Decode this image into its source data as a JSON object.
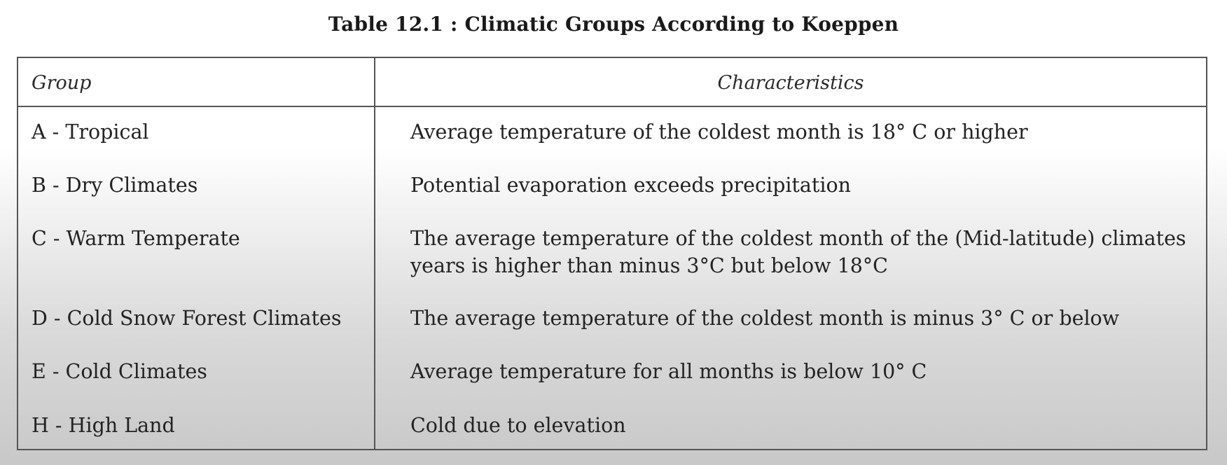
{
  "caption": "Table 12.1 : Climatic Groups According to Koeppen",
  "headers": {
    "group": "Group",
    "characteristics": "Characteristics"
  },
  "rows": [
    {
      "group": "A - Tropical",
      "characteristics": [
        "Average temperature of the coldest month is 18° C or higher"
      ]
    },
    {
      "group": "B - Dry Climates",
      "characteristics": [
        "Potential evaporation exceeds precipitation"
      ]
    },
    {
      "group": "C - Warm Temperate",
      "characteristics": [
        "The average temperature of the coldest month of the (Mid-latitude) climates",
        "years is higher than minus 3°C but below 18°C"
      ]
    },
    {
      "group": "D - Cold Snow Forest Climates",
      "characteristics": [
        "The average  temperature of the coldest month is  minus 3° C or below"
      ]
    },
    {
      "group": "E - Cold Climates",
      "characteristics": [
        "Average temperature for all months is below 10° C"
      ]
    },
    {
      "group": "H - High Land",
      "characteristics": [
        "Cold due to elevation"
      ]
    }
  ]
}
